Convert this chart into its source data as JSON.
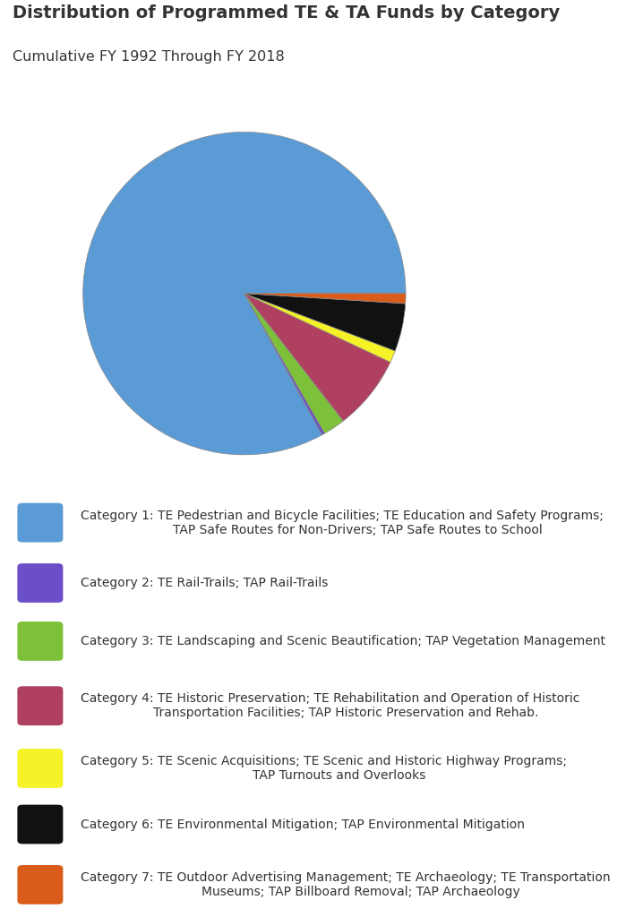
{
  "title": "Distribution of Programmed TE & TA Funds by Category",
  "subtitle": "Cumulative FY 1992 Through FY 2018",
  "title_fontsize": 14,
  "subtitle_fontsize": 11.5,
  "background_color": "#ffffff",
  "pie_values": [
    83.0,
    0.3,
    2.2,
    7.5,
    1.2,
    4.8,
    1.0
  ],
  "pie_colors": [
    "#5B9BD5",
    "#6B4FC8",
    "#7DC13A",
    "#B04060",
    "#F5F228",
    "#111111",
    "#D95C1A"
  ],
  "pie_startangle": 0,
  "categories": [
    "Category 1: TE Pedestrian and Bicycle Facilities; TE Education and Safety Programs;\n        TAP Safe Routes for Non-Drivers; TAP Safe Routes to School",
    "Category 2: TE Rail-Trails; TAP Rail-Trails",
    "Category 3: TE Landscaping and Scenic Beautification; TAP Vegetation Management",
    "Category 4: TE Historic Preservation; TE Rehabilitation and Operation of Historic\n        Transportation Facilities; TAP Historic Preservation and Rehab.",
    "Category 5: TE Scenic Acquisitions; TE Scenic and Historic Highway Programs;\n        TAP Turnouts and Overlooks",
    "Category 6: TE Environmental Mitigation; TAP Environmental Mitigation",
    "Category 7: TE Outdoor Advertising Management; TE Archaeology; TE Transportation\n        Museums; TAP Billboard Removal; TAP Archaeology"
  ],
  "legend_colors": [
    "#5B9BD5",
    "#6B4FC8",
    "#7DC13A",
    "#B04060",
    "#F5F228",
    "#111111",
    "#D95C1A"
  ],
  "text_color": "#333333",
  "legend_fontsize": 10.0,
  "pie_edge_color": "#888888",
  "pie_linewidth": 0.5
}
